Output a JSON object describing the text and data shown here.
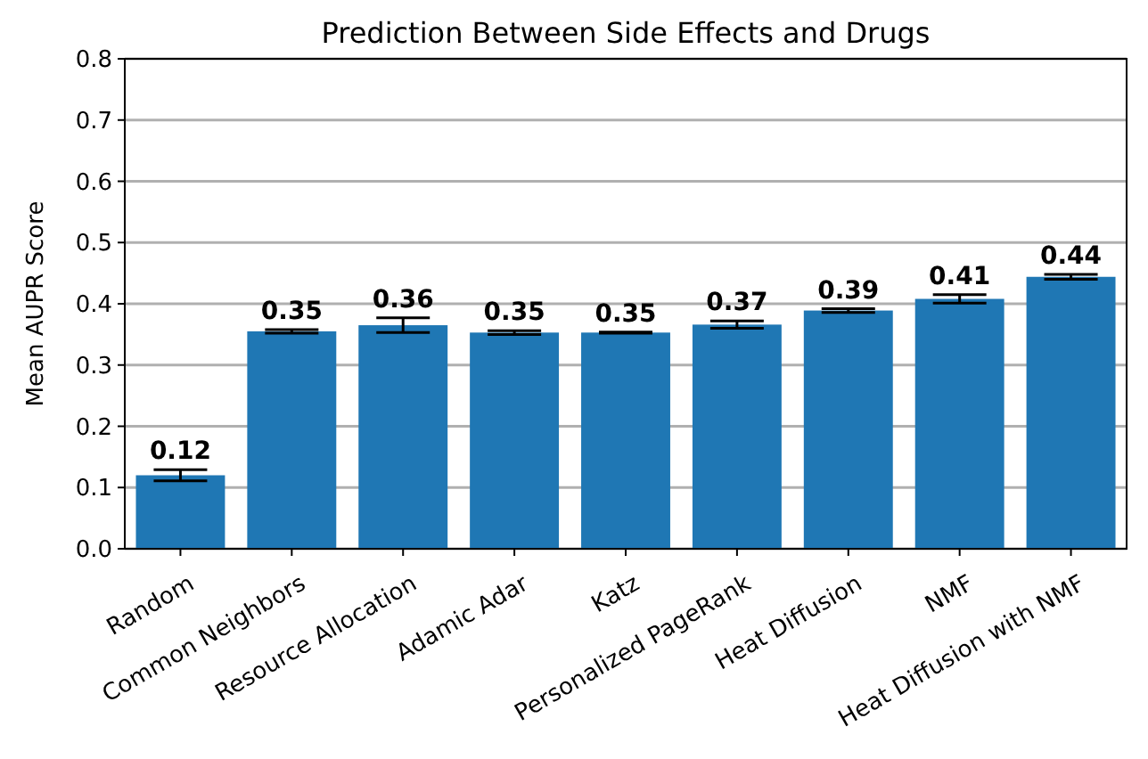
{
  "chart_data": {
    "type": "bar",
    "title": "Prediction Between Side Effects and Drugs",
    "ylabel": "Mean AUPR Score",
    "categories": [
      "Random",
      "Common Neighbors",
      "Resource Allocation",
      "Adamic Adar",
      "Katz",
      "Personalized PageRank",
      "Heat Diffusion",
      "NMF",
      "Heat Diffusion with NMF"
    ],
    "values": [
      0.12,
      0.355,
      0.365,
      0.353,
      0.353,
      0.366,
      0.389,
      0.408,
      0.444
    ],
    "errors": [
      0.009,
      0.003,
      0.012,
      0.003,
      0.001,
      0.006,
      0.003,
      0.007,
      0.004
    ],
    "value_labels": [
      "0.12",
      "0.35",
      "0.36",
      "0.35",
      "0.35",
      "0.37",
      "0.39",
      "0.41",
      "0.44"
    ],
    "color": "#1f77b4",
    "ylim": [
      0,
      0.8
    ],
    "yticks": [
      {
        "value": 0,
        "label": "0.0"
      },
      {
        "value": 0.1,
        "label": "0.1"
      },
      {
        "value": 0.2,
        "label": "0.2"
      },
      {
        "value": 0.3,
        "label": "0.3"
      },
      {
        "value": 0.4,
        "label": "0.4"
      },
      {
        "value": 0.5,
        "label": "0.5"
      },
      {
        "value": 0.6,
        "label": "0.6"
      },
      {
        "value": 0.7,
        "label": "0.7"
      },
      {
        "value": 0.8,
        "label": "0.8"
      }
    ],
    "grid": "y"
  }
}
